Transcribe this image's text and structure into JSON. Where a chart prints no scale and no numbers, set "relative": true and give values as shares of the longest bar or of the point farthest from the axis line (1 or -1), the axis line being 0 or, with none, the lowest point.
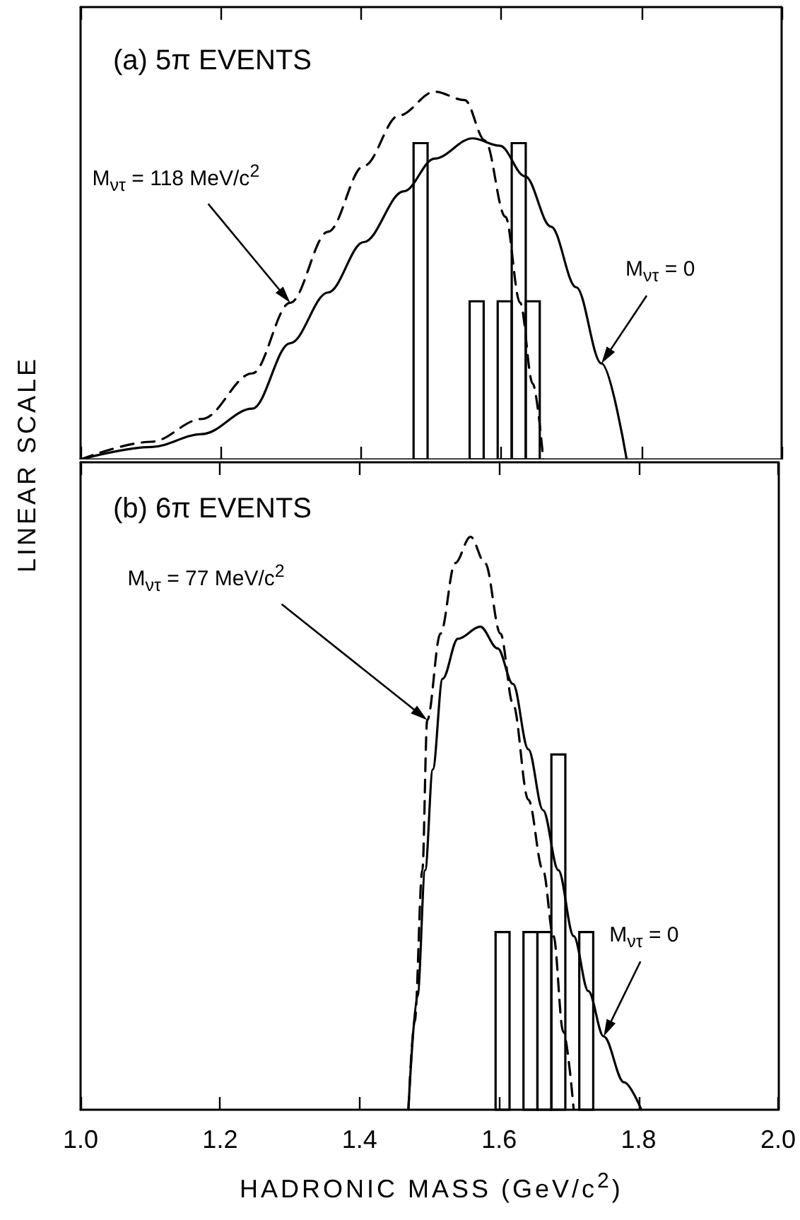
{
  "chart_data": [
    {
      "type": "bar",
      "title": "(a) 5π EVENTS",
      "ylabel": "LINEAR SCALE",
      "relative": true,
      "tick_labels": false,
      "color": "#000000",
      "x": [
        1.485,
        1.565,
        1.605,
        1.625,
        1.645
      ],
      "values": [
        0.86,
        0.43,
        0.43,
        0.86,
        0.43
      ],
      "xlim": [
        1.0,
        2.0
      ],
      "xticks": [
        1,
        1.2,
        1.4,
        1.6,
        1.8,
        2
      ],
      "series": [
        {
          "type": "line",
          "color": "#000000",
          "line_style": "solid",
          "x": [
            1.0,
            1.101,
            1.173,
            1.245,
            1.299,
            1.353,
            1.404,
            1.461,
            1.505,
            1.559,
            1.598,
            1.634,
            1.671,
            1.707,
            1.743,
            1.779
          ],
          "values": [
            0,
            0.034,
            0.069,
            0.138,
            0.316,
            0.454,
            0.591,
            0.729,
            0.818,
            0.873,
            0.853,
            0.77,
            0.633,
            0.468,
            0.261,
            0
          ]
        },
        {
          "type": "line",
          "color": "#000000",
          "line_style": "dashed",
          "x": [
            1.0,
            1.101,
            1.173,
            1.245,
            1.299,
            1.353,
            1.404,
            1.454,
            1.505,
            1.548,
            1.577,
            1.606,
            1.627,
            1.645,
            1.66
          ],
          "values": [
            0,
            0.048,
            0.11,
            0.234,
            0.426,
            0.619,
            0.798,
            0.935,
            1.0,
            0.977,
            0.867,
            0.66,
            0.426,
            0.206,
            0
          ]
        }
      ],
      "annotations": [
        {
          "text": "M$_{ν}$$_{τ}$ = 118 MeV/c$^{2}$",
          "x": 1.299,
          "y": 0.426
        },
        {
          "text": "M$_{ν}$$_{τ}$ = 0",
          "x": 1.743,
          "y": 0.261
        }
      ]
    },
    {
      "type": "bar",
      "title": "(b) 6π EVENTS",
      "xlabel": "HADRONIC MASS (GeV/c$^{2}$)",
      "relative": true,
      "tick_labels": "x",
      "color": "#000000",
      "x": [
        1.605,
        1.645,
        1.665,
        1.685,
        1.725
      ],
      "values": [
        0.31,
        0.31,
        0.31,
        0.62,
        0.31
      ],
      "xlim": [
        1.0,
        2.0
      ],
      "xticks": [
        {
          "value": 1.0,
          "label": "1.0"
        },
        1.2,
        1.4,
        1.6,
        1.8,
        {
          "value": 2.0,
          "label": "2.0"
        }
      ],
      "series": [
        {
          "type": "line",
          "color": "#000000",
          "line_style": "solid",
          "x": [
            1.47,
            1.483,
            1.494,
            1.505,
            1.519,
            1.541,
            1.573,
            1.598,
            1.62,
            1.642,
            1.663,
            1.685,
            1.707,
            1.728,
            1.75,
            1.779,
            1.804
          ],
          "values": [
            0,
            0.198,
            0.418,
            0.594,
            0.752,
            0.822,
            0.843,
            0.805,
            0.743,
            0.629,
            0.523,
            0.418,
            0.303,
            0.207,
            0.128,
            0.048,
            0
          ]
        },
        {
          "type": "line",
          "color": "#000000",
          "line_style": "dashed",
          "x": [
            1.47,
            1.479,
            1.49,
            1.497,
            1.516,
            1.537,
            1.559,
            1.58,
            1.602,
            1.62,
            1.642,
            1.663,
            1.678,
            1.692,
            1.707
          ],
          "values": [
            0,
            0.154,
            0.418,
            0.68,
            0.831,
            0.954,
            1.0,
            0.954,
            0.831,
            0.708,
            0.541,
            0.418,
            0.303,
            0.136,
            0
          ]
        }
      ],
      "annotations": [
        {
          "text": "M$_{ν}$$_{τ}$ = 77 MeV/c$^{2}$",
          "x": 1.497,
          "y": 0.68
        },
        {
          "text": "M$_{ν}$$_{τ}$ = 0",
          "x": 1.75,
          "y": 0.128
        }
      ]
    }
  ]
}
